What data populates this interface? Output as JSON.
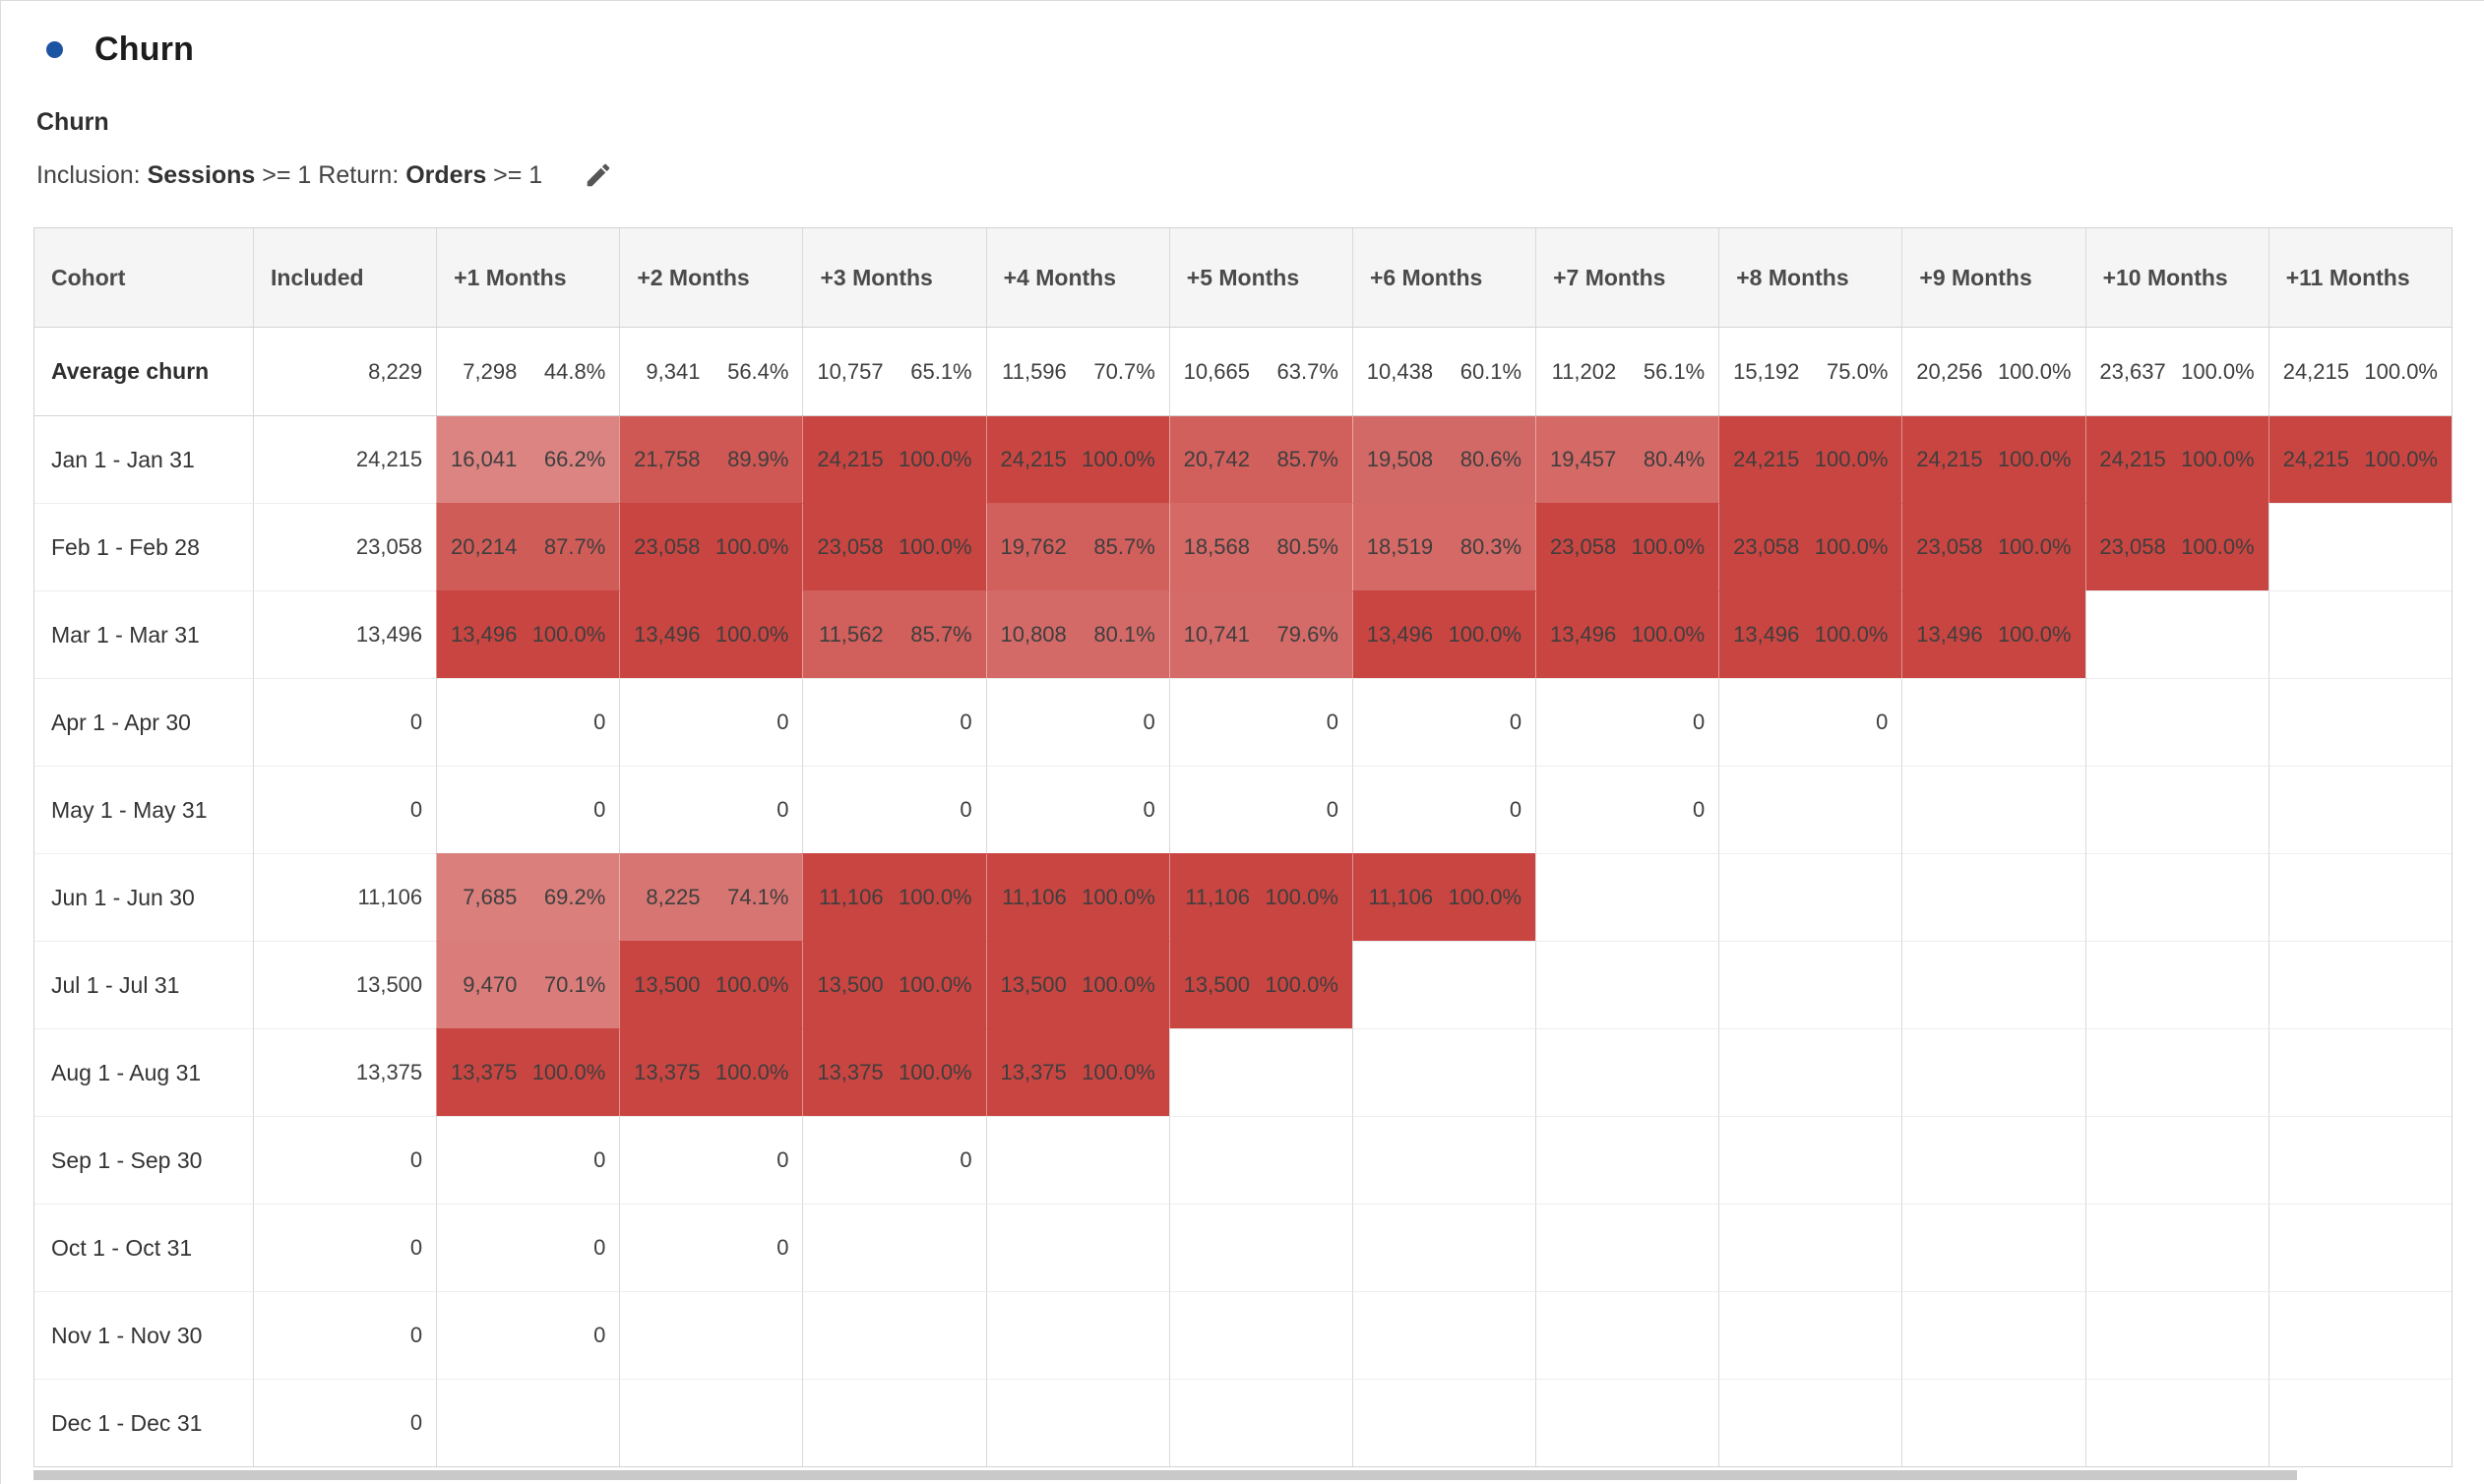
{
  "panel": {
    "title": "Churn",
    "bullet_icon": "circle-icon",
    "bullet_color": "#1C54A4"
  },
  "visualization": {
    "subtitle": "Churn",
    "criteria_segments": [
      {
        "text": "Inclusion: ",
        "bold": false
      },
      {
        "text": "Sessions",
        "bold": true
      },
      {
        "text": " >= 1 ",
        "bold": false
      },
      {
        "text": "Return: ",
        "bold": false
      },
      {
        "text": "Orders",
        "bold": true
      },
      {
        "text": " >= 1",
        "bold": false
      }
    ],
    "edit_icon": "pencil-icon"
  },
  "table": {
    "columns": [
      "Cohort",
      "Included",
      "+1 Months",
      "+2 Months",
      "+3 Months",
      "+4 Months",
      "+5 Months",
      "+6 Months",
      "+7 Months",
      "+8 Months",
      "+9 Months",
      "+10 Months",
      "+11 Months"
    ],
    "heat_color": "#C94541",
    "header_bg": "#F5F5F5",
    "average_row": {
      "label": "Average churn",
      "included": "8,229",
      "cells": [
        {
          "value": "7,298",
          "pct": "44.8%"
        },
        {
          "value": "9,341",
          "pct": "56.4%"
        },
        {
          "value": "10,757",
          "pct": "65.1%"
        },
        {
          "value": "11,596",
          "pct": "70.7%"
        },
        {
          "value": "10,665",
          "pct": "63.7%"
        },
        {
          "value": "10,438",
          "pct": "60.1%"
        },
        {
          "value": "11,202",
          "pct": "56.1%"
        },
        {
          "value": "15,192",
          "pct": "75.0%"
        },
        {
          "value": "20,256",
          "pct": "100.0%"
        },
        {
          "value": "23,637",
          "pct": "100.0%"
        },
        {
          "value": "24,215",
          "pct": "100.0%"
        }
      ]
    },
    "rows": [
      {
        "label": "Jan 1 - Jan 31",
        "included": "24,215",
        "cells": [
          {
            "value": "16,041",
            "pct": "66.2%",
            "heat": 0.662
          },
          {
            "value": "21,758",
            "pct": "89.9%",
            "heat": 0.899
          },
          {
            "value": "24,215",
            "pct": "100.0%",
            "heat": 1
          },
          {
            "value": "24,215",
            "pct": "100.0%",
            "heat": 1
          },
          {
            "value": "20,742",
            "pct": "85.7%",
            "heat": 0.857
          },
          {
            "value": "19,508",
            "pct": "80.6%",
            "heat": 0.806
          },
          {
            "value": "19,457",
            "pct": "80.4%",
            "heat": 0.804
          },
          {
            "value": "24,215",
            "pct": "100.0%",
            "heat": 1
          },
          {
            "value": "24,215",
            "pct": "100.0%",
            "heat": 1
          },
          {
            "value": "24,215",
            "pct": "100.0%",
            "heat": 1
          },
          {
            "value": "24,215",
            "pct": "100.0%",
            "heat": 1
          }
        ]
      },
      {
        "label": "Feb 1 - Feb 28",
        "included": "23,058",
        "cells": [
          {
            "value": "20,214",
            "pct": "87.7%",
            "heat": 0.877
          },
          {
            "value": "23,058",
            "pct": "100.0%",
            "heat": 1
          },
          {
            "value": "23,058",
            "pct": "100.0%",
            "heat": 1
          },
          {
            "value": "19,762",
            "pct": "85.7%",
            "heat": 0.857
          },
          {
            "value": "18,568",
            "pct": "80.5%",
            "heat": 0.805
          },
          {
            "value": "18,519",
            "pct": "80.3%",
            "heat": 0.803
          },
          {
            "value": "23,058",
            "pct": "100.0%",
            "heat": 1
          },
          {
            "value": "23,058",
            "pct": "100.0%",
            "heat": 1
          },
          {
            "value": "23,058",
            "pct": "100.0%",
            "heat": 1
          },
          {
            "value": "23,058",
            "pct": "100.0%",
            "heat": 1
          },
          null
        ]
      },
      {
        "label": "Mar 1 - Mar 31",
        "included": "13,496",
        "cells": [
          {
            "value": "13,496",
            "pct": "100.0%",
            "heat": 1
          },
          {
            "value": "13,496",
            "pct": "100.0%",
            "heat": 1
          },
          {
            "value": "11,562",
            "pct": "85.7%",
            "heat": 0.857
          },
          {
            "value": "10,808",
            "pct": "80.1%",
            "heat": 0.801
          },
          {
            "value": "10,741",
            "pct": "79.6%",
            "heat": 0.796
          },
          {
            "value": "13,496",
            "pct": "100.0%",
            "heat": 1
          },
          {
            "value": "13,496",
            "pct": "100.0%",
            "heat": 1
          },
          {
            "value": "13,496",
            "pct": "100.0%",
            "heat": 1
          },
          {
            "value": "13,496",
            "pct": "100.0%",
            "heat": 1
          },
          null,
          null
        ]
      },
      {
        "label": "Apr 1 - Apr 30",
        "included": "0",
        "cells": [
          {
            "value": "0"
          },
          {
            "value": "0"
          },
          {
            "value": "0"
          },
          {
            "value": "0"
          },
          {
            "value": "0"
          },
          {
            "value": "0"
          },
          {
            "value": "0"
          },
          {
            "value": "0"
          },
          null,
          null,
          null
        ]
      },
      {
        "label": "May 1 - May 31",
        "included": "0",
        "cells": [
          {
            "value": "0"
          },
          {
            "value": "0"
          },
          {
            "value": "0"
          },
          {
            "value": "0"
          },
          {
            "value": "0"
          },
          {
            "value": "0"
          },
          {
            "value": "0"
          },
          null,
          null,
          null,
          null
        ]
      },
      {
        "label": "Jun 1 - Jun 30",
        "included": "11,106",
        "cells": [
          {
            "value": "7,685",
            "pct": "69.2%",
            "heat": 0.692
          },
          {
            "value": "8,225",
            "pct": "74.1%",
            "heat": 0.741
          },
          {
            "value": "11,106",
            "pct": "100.0%",
            "heat": 1
          },
          {
            "value": "11,106",
            "pct": "100.0%",
            "heat": 1
          },
          {
            "value": "11,106",
            "pct": "100.0%",
            "heat": 1
          },
          {
            "value": "11,106",
            "pct": "100.0%",
            "heat": 1
          },
          null,
          null,
          null,
          null,
          null
        ]
      },
      {
        "label": "Jul 1 - Jul 31",
        "included": "13,500",
        "cells": [
          {
            "value": "9,470",
            "pct": "70.1%",
            "heat": 0.701
          },
          {
            "value": "13,500",
            "pct": "100.0%",
            "heat": 1
          },
          {
            "value": "13,500",
            "pct": "100.0%",
            "heat": 1
          },
          {
            "value": "13,500",
            "pct": "100.0%",
            "heat": 1
          },
          {
            "value": "13,500",
            "pct": "100.0%",
            "heat": 1
          },
          null,
          null,
          null,
          null,
          null,
          null
        ]
      },
      {
        "label": "Aug 1 - Aug 31",
        "included": "13,375",
        "cells": [
          {
            "value": "13,375",
            "pct": "100.0%",
            "heat": 1
          },
          {
            "value": "13,375",
            "pct": "100.0%",
            "heat": 1
          },
          {
            "value": "13,375",
            "pct": "100.0%",
            "heat": 1
          },
          {
            "value": "13,375",
            "pct": "100.0%",
            "heat": 1
          },
          null,
          null,
          null,
          null,
          null,
          null,
          null
        ]
      },
      {
        "label": "Sep 1 - Sep 30",
        "included": "0",
        "cells": [
          {
            "value": "0"
          },
          {
            "value": "0"
          },
          {
            "value": "0"
          },
          null,
          null,
          null,
          null,
          null,
          null,
          null,
          null
        ]
      },
      {
        "label": "Oct 1 - Oct 31",
        "included": "0",
        "cells": [
          {
            "value": "0"
          },
          {
            "value": "0"
          },
          null,
          null,
          null,
          null,
          null,
          null,
          null,
          null,
          null
        ]
      },
      {
        "label": "Nov 1 - Nov 30",
        "included": "0",
        "cells": [
          {
            "value": "0"
          },
          null,
          null,
          null,
          null,
          null,
          null,
          null,
          null,
          null,
          null
        ]
      },
      {
        "label": "Dec 1 - Dec 31",
        "included": "0",
        "cells": [
          null,
          null,
          null,
          null,
          null,
          null,
          null,
          null,
          null,
          null,
          null
        ]
      }
    ]
  }
}
